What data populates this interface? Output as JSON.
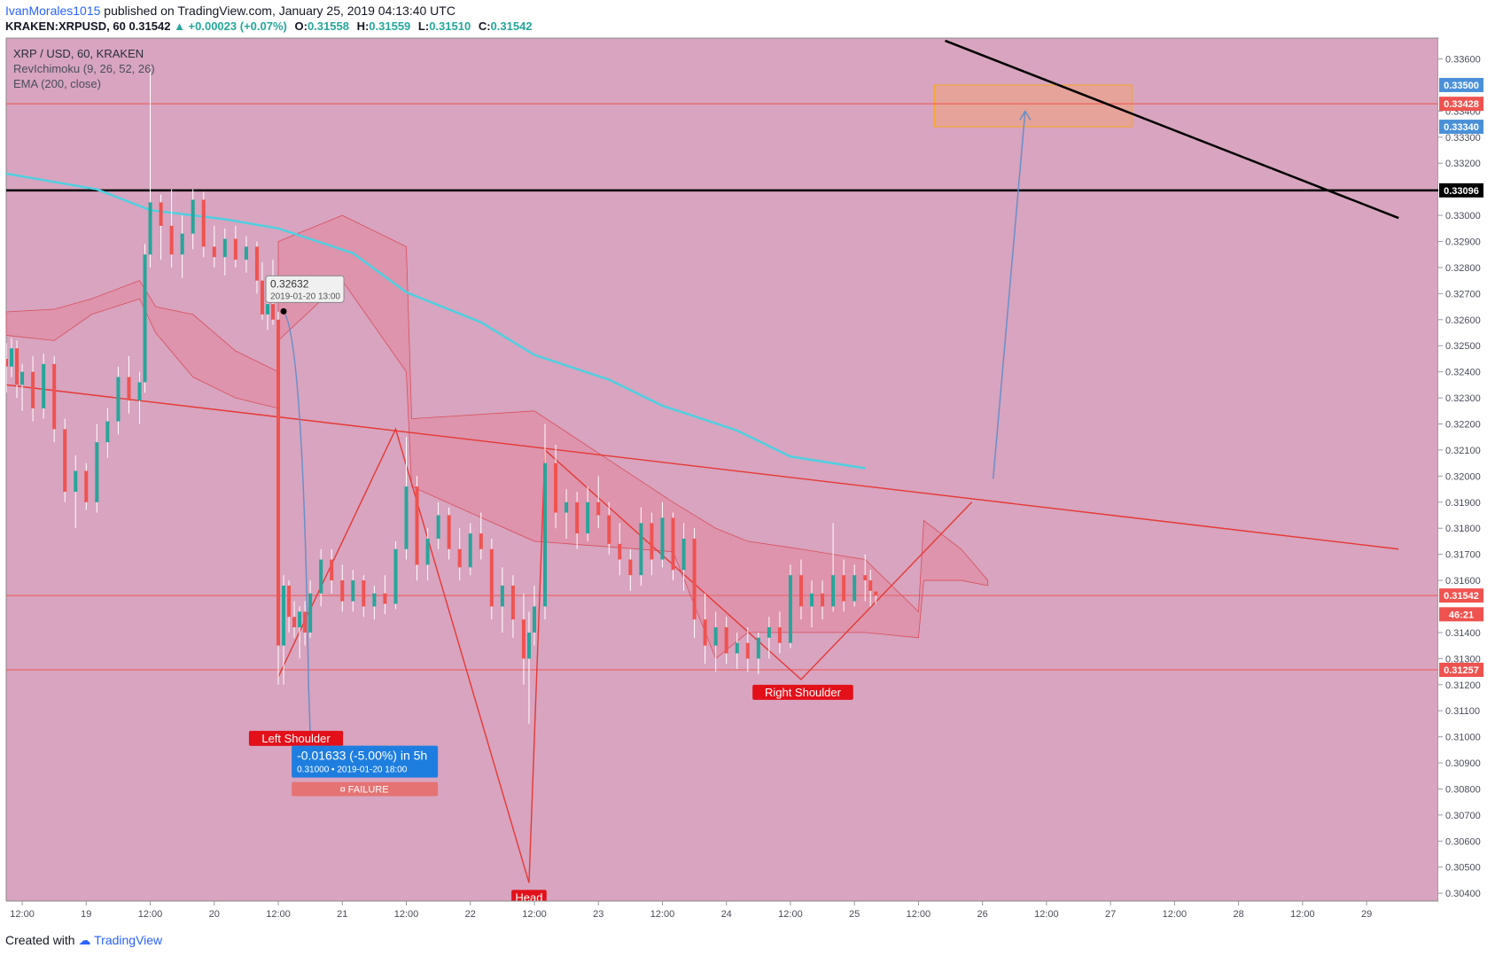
{
  "header": {
    "author": "IvanMorales1015",
    "published_text": "published on TradingView.com, January 25, 2019 04:13:40 UTC",
    "symbol": "KRAKEN:XRPUSD, 60",
    "last": "0.31542",
    "change": "▲ +0.00023 (+0.07%)",
    "ohlc": {
      "O": "0.31558",
      "H": "0.31559",
      "L": "0.31510",
      "C": "0.31542"
    }
  },
  "legend": [
    "XRP / USD, 60, KRAKEN",
    "RevIchimoku (9, 26, 52, 26)",
    "EMA (200, close)"
  ],
  "price_axis": {
    "ticks": [
      "0.33600",
      "0.33400",
      "0.33300",
      "0.33200",
      "0.33000",
      "0.32900",
      "0.32800",
      "0.32700",
      "0.32600",
      "0.32500",
      "0.32400",
      "0.32300",
      "0.32200",
      "0.32100",
      "0.32000",
      "0.31900",
      "0.31800",
      "0.31700",
      "0.31600",
      "0.31400",
      "0.31300",
      "0.31200",
      "0.31100",
      "0.31000",
      "0.30900",
      "0.30800",
      "0.30700",
      "0.30600",
      "0.30500",
      "0.30400"
    ],
    "badges": [
      {
        "label": "0.33500",
        "value": 0.335,
        "color": "#4a90d9"
      },
      {
        "label": "0.33428",
        "value": 0.33428,
        "color": "#ef5350"
      },
      {
        "label": "0.33340",
        "value": 0.3334,
        "color": "#4a90d9"
      },
      {
        "label": "0.33096",
        "value": 0.33096,
        "color": "#000000"
      },
      {
        "label": "0.31542",
        "value": 0.31542,
        "color": "#ef5350"
      },
      {
        "label": "46:21",
        "value": 0.3147,
        "color": "#ef5350"
      },
      {
        "label": "0.31257",
        "value": 0.31257,
        "color": "#ef5350"
      }
    ]
  },
  "time_axis": {
    "ticks": [
      "12:00",
      "19",
      "12:00",
      "20",
      "12:00",
      "21",
      "12:00",
      "22",
      "12:00",
      "23",
      "12:00",
      "24",
      "12:00",
      "25",
      "12:00",
      "26",
      "12:00",
      "27",
      "12:00",
      "28",
      "12:00",
      "29"
    ]
  },
  "chart_data": {
    "type": "candlestick",
    "symbol": "XRP / USD",
    "exchange": "KRAKEN",
    "interval": "60",
    "x_range": [
      "2019-01-18 09:00",
      "2019-01-29 06:00"
    ],
    "ylim": [
      0.3037,
      0.3368
    ],
    "horizontal_lines": [
      {
        "value": 0.33428,
        "color": "#ef5350"
      },
      {
        "value": 0.33096,
        "color": "#000000"
      },
      {
        "value": 0.31542,
        "color": "#ef5350"
      },
      {
        "value": 0.31257,
        "color": "#ef5350"
      }
    ],
    "target_zone": {
      "from_time": "2019-01-25 15:00",
      "to_time": "2019-01-27 04:00",
      "low": 0.3334,
      "high": 0.335
    },
    "ema_200": [
      [
        "2019-01-18 09:00",
        0.3316
      ],
      [
        "2019-01-19 02:00",
        0.331
      ],
      [
        "2019-01-19 12:00",
        0.3302
      ],
      [
        "2019-01-20 02:00",
        0.32985
      ],
      [
        "2019-01-20 12:00",
        0.3295
      ],
      [
        "2019-01-21 02:00",
        0.32855
      ],
      [
        "2019-01-21 12:00",
        0.32705
      ],
      [
        "2019-01-22 02:00",
        0.3259
      ],
      [
        "2019-01-22 12:00",
        0.32465
      ],
      [
        "2019-01-23 02:00",
        0.3237
      ],
      [
        "2019-01-23 12:00",
        0.3227
      ],
      [
        "2019-01-24 02:00",
        0.32175
      ],
      [
        "2019-01-24 12:00",
        0.32075
      ],
      [
        "2019-01-25 02:00",
        0.3203
      ]
    ],
    "head_and_shoulders": {
      "points": [
        {
          "label": "Left Shoulder",
          "time": "2019-01-20 12:00",
          "value": 0.3123
        },
        {
          "label": "",
          "time": "2019-01-21 10:00",
          "value": 0.3218
        },
        {
          "label": "Head",
          "time": "2019-01-22 11:00",
          "value": 0.3044
        },
        {
          "label": "",
          "time": "2019-01-22 14:00",
          "value": 0.321
        },
        {
          "label": "Right Shoulder",
          "time": "2019-01-24 14:00",
          "value": 0.3122
        },
        {
          "label": "",
          "time": "2019-01-25 22:00",
          "value": 0.319
        }
      ],
      "neckline": [
        [
          "2019-01-18 09:00",
          0.3235
        ],
        [
          "2019-01-29 06:00",
          0.3172
        ]
      ]
    },
    "black_trendline": [
      [
        "2019-01-25 17:00",
        0.3367
      ],
      [
        "2019-01-29 06:00",
        0.3299
      ]
    ],
    "projection_arrow": [
      [
        "2019-01-26 02:00",
        0.3199
      ],
      [
        "2019-01-26 08:00",
        0.334
      ]
    ],
    "measure": {
      "start": {
        "price": "0.32632",
        "time": "2019-01-20 13:00"
      },
      "end": {
        "price": "0.31000",
        "time": "2019-01-20 18:00"
      },
      "result": "-0.01633 (-5.00%) in 5h",
      "status": "FAILURE"
    },
    "labels": [
      "Left Shoulder",
      "Head",
      "Right Shoulder"
    ],
    "candles": [
      [
        "2019-01-18 09:00",
        0.3245,
        0.3251,
        0.3232,
        0.3242
      ],
      [
        "2019-01-18 10:00",
        0.3242,
        0.3253,
        0.3238,
        0.3249
      ],
      [
        "2019-01-18 11:00",
        0.3249,
        0.3252,
        0.323,
        0.3235
      ],
      [
        "2019-01-18 12:00",
        0.3235,
        0.3243,
        0.3225,
        0.324
      ],
      [
        "2019-01-18 14:00",
        0.324,
        0.3246,
        0.3221,
        0.3226
      ],
      [
        "2019-01-18 16:00",
        0.3226,
        0.3247,
        0.3222,
        0.3243
      ],
      [
        "2019-01-18 18:00",
        0.3243,
        0.3246,
        0.3213,
        0.3218
      ],
      [
        "2019-01-18 20:00",
        0.3218,
        0.3222,
        0.319,
        0.3194
      ],
      [
        "2019-01-18 22:00",
        0.3194,
        0.3208,
        0.318,
        0.3202
      ],
      [
        "2019-01-19 00:00",
        0.3202,
        0.3205,
        0.3187,
        0.319
      ],
      [
        "2019-01-19 02:00",
        0.319,
        0.322,
        0.3186,
        0.3213
      ],
      [
        "2019-01-19 04:00",
        0.3213,
        0.3226,
        0.3207,
        0.3221
      ],
      [
        "2019-01-19 06:00",
        0.3221,
        0.3242,
        0.3216,
        0.3238
      ],
      [
        "2019-01-19 08:00",
        0.3238,
        0.3246,
        0.3224,
        0.3229
      ],
      [
        "2019-01-19 10:00",
        0.3229,
        0.324,
        0.322,
        0.3236
      ],
      [
        "2019-01-19 11:00",
        0.3236,
        0.3289,
        0.3232,
        0.3285
      ],
      [
        "2019-01-19 12:00",
        0.3285,
        0.3357,
        0.328,
        0.3305
      ],
      [
        "2019-01-19 14:00",
        0.3305,
        0.3308,
        0.3283,
        0.3296
      ],
      [
        "2019-01-19 16:00",
        0.3296,
        0.331,
        0.328,
        0.3285
      ],
      [
        "2019-01-19 18:00",
        0.3285,
        0.33,
        0.3276,
        0.3293
      ],
      [
        "2019-01-19 20:00",
        0.3293,
        0.331,
        0.3287,
        0.3306
      ],
      [
        "2019-01-19 22:00",
        0.3306,
        0.3309,
        0.3284,
        0.3288
      ],
      [
        "2019-01-20 00:00",
        0.3288,
        0.3296,
        0.328,
        0.3284
      ],
      [
        "2019-01-20 02:00",
        0.3284,
        0.3295,
        0.3277,
        0.3291
      ],
      [
        "2019-01-20 04:00",
        0.3291,
        0.3296,
        0.328,
        0.3283
      ],
      [
        "2019-01-20 06:00",
        0.3283,
        0.3292,
        0.3278,
        0.3288
      ],
      [
        "2019-01-20 08:00",
        0.3288,
        0.329,
        0.327,
        0.3275
      ],
      [
        "2019-01-20 09:00",
        0.3275,
        0.3282,
        0.326,
        0.3262
      ],
      [
        "2019-01-20 10:00",
        0.3262,
        0.3271,
        0.3256,
        0.3266
      ],
      [
        "2019-01-20 11:00",
        0.3266,
        0.3283,
        0.3258,
        0.326
      ],
      [
        "2019-01-20 12:00",
        0.326,
        0.3263,
        0.312,
        0.3135
      ],
      [
        "2019-01-20 13:00",
        0.3135,
        0.3162,
        0.312,
        0.3158
      ],
      [
        "2019-01-20 14:00",
        0.3158,
        0.316,
        0.314,
        0.3146
      ],
      [
        "2019-01-20 15:00",
        0.3146,
        0.3152,
        0.3138,
        0.3142
      ],
      [
        "2019-01-20 16:00",
        0.3142,
        0.315,
        0.313,
        0.3148
      ],
      [
        "2019-01-20 17:00",
        0.3148,
        0.3152,
        0.3135,
        0.314
      ],
      [
        "2019-01-20 18:00",
        0.314,
        0.316,
        0.3138,
        0.3155
      ],
      [
        "2019-01-20 20:00",
        0.3155,
        0.3172,
        0.315,
        0.3168
      ],
      [
        "2019-01-20 22:00",
        0.3168,
        0.3172,
        0.3155,
        0.316
      ],
      [
        "2019-01-21 00:00",
        0.316,
        0.3166,
        0.3148,
        0.3152
      ],
      [
        "2019-01-21 02:00",
        0.3152,
        0.3164,
        0.3148,
        0.316
      ],
      [
        "2019-01-21 04:00",
        0.316,
        0.3162,
        0.3146,
        0.315
      ],
      [
        "2019-01-21 06:00",
        0.315,
        0.3158,
        0.3145,
        0.3155
      ],
      [
        "2019-01-21 08:00",
        0.3155,
        0.3162,
        0.3147,
        0.3151
      ],
      [
        "2019-01-21 10:00",
        0.3151,
        0.3175,
        0.3149,
        0.3172
      ],
      [
        "2019-01-21 12:00",
        0.3172,
        0.3215,
        0.3168,
        0.3196
      ],
      [
        "2019-01-21 14:00",
        0.3196,
        0.32,
        0.316,
        0.3166
      ],
      [
        "2019-01-21 16:00",
        0.3166,
        0.318,
        0.316,
        0.3176
      ],
      [
        "2019-01-21 18:00",
        0.3176,
        0.319,
        0.3172,
        0.3185
      ],
      [
        "2019-01-21 20:00",
        0.3185,
        0.3188,
        0.3168,
        0.3172
      ],
      [
        "2019-01-21 22:00",
        0.3172,
        0.318,
        0.316,
        0.3165
      ],
      [
        "2019-01-22 00:00",
        0.3165,
        0.3182,
        0.3162,
        0.3178
      ],
      [
        "2019-01-22 02:00",
        0.3178,
        0.3186,
        0.3168,
        0.3172
      ],
      [
        "2019-01-22 04:00",
        0.3172,
        0.3176,
        0.3145,
        0.315
      ],
      [
        "2019-01-22 06:00",
        0.315,
        0.3165,
        0.314,
        0.3158
      ],
      [
        "2019-01-22 08:00",
        0.3158,
        0.3162,
        0.3138,
        0.3145
      ],
      [
        "2019-01-22 10:00",
        0.3145,
        0.3155,
        0.312,
        0.313
      ],
      [
        "2019-01-22 11:00",
        0.313,
        0.3148,
        0.3105,
        0.314
      ],
      [
        "2019-01-22 12:00",
        0.314,
        0.3158,
        0.3135,
        0.315
      ],
      [
        "2019-01-22 14:00",
        0.315,
        0.322,
        0.3145,
        0.3205
      ],
      [
        "2019-01-22 16:00",
        0.3205,
        0.3212,
        0.318,
        0.3186
      ],
      [
        "2019-01-22 18:00",
        0.3186,
        0.3195,
        0.3176,
        0.319
      ],
      [
        "2019-01-22 20:00",
        0.319,
        0.3194,
        0.3172,
        0.3178
      ],
      [
        "2019-01-22 22:00",
        0.3178,
        0.3196,
        0.3175,
        0.319
      ],
      [
        "2019-01-23 00:00",
        0.319,
        0.32,
        0.318,
        0.3185
      ],
      [
        "2019-01-23 02:00",
        0.3185,
        0.319,
        0.317,
        0.3174
      ],
      [
        "2019-01-23 04:00",
        0.3174,
        0.3182,
        0.3162,
        0.3168
      ],
      [
        "2019-01-23 06:00",
        0.3168,
        0.3172,
        0.3156,
        0.3162
      ],
      [
        "2019-01-23 08:00",
        0.3162,
        0.3188,
        0.3158,
        0.3182
      ],
      [
        "2019-01-23 10:00",
        0.3182,
        0.3186,
        0.3162,
        0.3168
      ],
      [
        "2019-01-23 12:00",
        0.3168,
        0.319,
        0.3165,
        0.3184
      ],
      [
        "2019-01-23 14:00",
        0.3184,
        0.3186,
        0.316,
        0.3164
      ],
      [
        "2019-01-23 16:00",
        0.3164,
        0.3182,
        0.3156,
        0.3176
      ],
      [
        "2019-01-23 18:00",
        0.3176,
        0.318,
        0.3138,
        0.3145
      ],
      [
        "2019-01-23 20:00",
        0.3145,
        0.3155,
        0.3128,
        0.3135
      ],
      [
        "2019-01-23 22:00",
        0.3135,
        0.3148,
        0.3125,
        0.3142
      ],
      [
        "2019-01-24 00:00",
        0.3142,
        0.3146,
        0.3128,
        0.3132
      ],
      [
        "2019-01-24 02:00",
        0.3132,
        0.314,
        0.3126,
        0.3136
      ],
      [
        "2019-01-24 04:00",
        0.3136,
        0.3142,
        0.3125,
        0.313
      ],
      [
        "2019-01-24 06:00",
        0.313,
        0.314,
        0.3124,
        0.3138
      ],
      [
        "2019-01-24 08:00",
        0.3138,
        0.3146,
        0.313,
        0.3142
      ],
      [
        "2019-01-24 10:00",
        0.3142,
        0.3148,
        0.3132,
        0.3136
      ],
      [
        "2019-01-24 12:00",
        0.3136,
        0.3166,
        0.3134,
        0.3162
      ],
      [
        "2019-01-24 14:00",
        0.3162,
        0.3168,
        0.3145,
        0.315
      ],
      [
        "2019-01-24 16:00",
        0.315,
        0.316,
        0.3142,
        0.3155
      ],
      [
        "2019-01-24 18:00",
        0.3155,
        0.316,
        0.3145,
        0.315
      ],
      [
        "2019-01-24 20:00",
        0.315,
        0.3182,
        0.3148,
        0.3162
      ],
      [
        "2019-01-24 22:00",
        0.3162,
        0.3168,
        0.3148,
        0.3152
      ],
      [
        "2019-01-25 00:00",
        0.3152,
        0.3166,
        0.315,
        0.3162
      ],
      [
        "2019-01-25 02:00",
        0.3162,
        0.317,
        0.3152,
        0.316
      ],
      [
        "2019-01-25 03:00",
        0.316,
        0.3164,
        0.315,
        0.3156
      ],
      [
        "2019-01-25 04:00",
        0.31558,
        0.31559,
        0.3151,
        0.31542
      ]
    ]
  }
}
